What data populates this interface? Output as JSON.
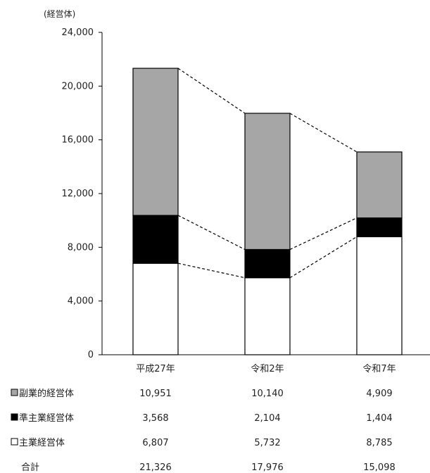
{
  "chart_data": {
    "type": "bar",
    "stacked": true,
    "unit_label": "(経営体)",
    "categories": [
      "平成27年",
      "令和2年",
      "令和7年"
    ],
    "ylim": [
      0,
      24000
    ],
    "yticks": [
      "0",
      "4,000",
      "8,000",
      "12,000",
      "16,000",
      "20,000",
      "24,000"
    ],
    "series": [
      {
        "name": "主業経営体",
        "values": [
          6807,
          5732,
          8785
        ],
        "labels": [
          "6,807",
          "5,732",
          "8,785"
        ],
        "color": "#ffffff"
      },
      {
        "name": "準主業経営体",
        "values": [
          3568,
          2104,
          1404
        ],
        "labels": [
          "3,568",
          "2,104",
          "1,404"
        ],
        "color": "#000000"
      },
      {
        "name": "副業的経営体",
        "values": [
          10951,
          10140,
          4909
        ],
        "labels": [
          "10,951",
          "10,140",
          "4,909"
        ],
        "color": "#a6a6a6"
      }
    ],
    "totals": {
      "name": "合計",
      "values": [
        21326,
        17976,
        15098
      ],
      "labels": [
        "21,326",
        "17,976",
        "15,098"
      ]
    },
    "connector_lines": "dashed",
    "grid": false
  }
}
